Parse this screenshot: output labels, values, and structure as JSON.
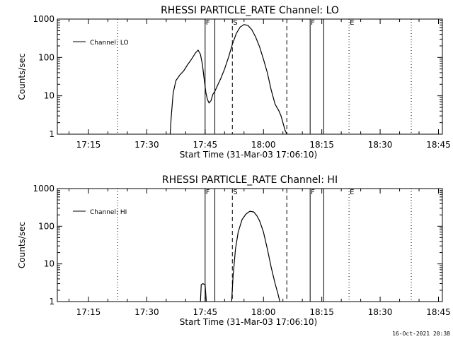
{
  "footer_date": "16-Oct-2021 20:38",
  "colors": {
    "background": "#ffffff",
    "foreground": "#000000"
  },
  "chart_data": [
    {
      "type": "line",
      "title": "RHESSI PARTICLE_RATE Channel: LO",
      "xlabel": "Start Time (31-Mar-03 17:06:10)",
      "ylabel": "Counts/sec",
      "yscale": "log",
      "ylim": [
        1,
        1000
      ],
      "y_ticks": [
        1,
        10,
        100,
        1000
      ],
      "y_tick_labels": [
        "1",
        "10",
        "100",
        "1000"
      ],
      "xlim_minutes": [
        7.0,
        106.0
      ],
      "x_ticks_minutes": [
        15,
        30,
        45,
        60,
        75,
        90,
        105
      ],
      "x_tick_labels": [
        "17:15",
        "17:30",
        "17:45",
        "18:00",
        "18:15",
        "18:30",
        "18:45"
      ],
      "legend": {
        "label": "Channel: LO",
        "position": "top-left"
      },
      "markers": [
        {
          "minute": 22.5,
          "style": "dotted",
          "label": ""
        },
        {
          "minute": 45.0,
          "style": "solid",
          "label": "F"
        },
        {
          "minute": 47.5,
          "style": "solid",
          "label": ""
        },
        {
          "minute": 52.0,
          "style": "dashed",
          "label": "S"
        },
        {
          "minute": 66.0,
          "style": "dashed",
          "label": ""
        },
        {
          "minute": 72.0,
          "style": "solid",
          "label": "F"
        },
        {
          "minute": 75.5,
          "style": "solid",
          "label": ""
        },
        {
          "minute": 82.0,
          "style": "dotted",
          "label": "E"
        },
        {
          "minute": 98.0,
          "style": "dotted",
          "label": ""
        }
      ],
      "series": [
        {
          "name": "Channel: LO",
          "x": [
            36.0,
            36.3,
            36.8,
            37.5,
            38.5,
            39.5,
            40.5,
            41.5,
            42.5,
            43.2,
            43.8,
            44.3,
            44.8,
            45.2,
            45.6,
            46.0,
            46.5,
            47.0,
            47.5,
            48.0,
            49.0,
            50.0,
            51.0,
            52.0,
            53.0,
            54.0,
            55.0,
            56.0,
            57.0,
            58.0,
            59.0,
            60.0,
            61.0,
            62.0,
            63.0,
            64.0,
            64.5,
            65.0,
            65.5,
            66.0
          ],
          "y": [
            1,
            3,
            12,
            25,
            35,
            45,
            65,
            90,
            130,
            155,
            120,
            65,
            25,
            12,
            8,
            6.5,
            7.5,
            11,
            13,
            17,
            28,
            50,
            100,
            220,
            420,
            620,
            720,
            680,
            530,
            340,
            190,
            90,
            40,
            14,
            6,
            4,
            3,
            2,
            1.3,
            1
          ]
        }
      ]
    },
    {
      "type": "line",
      "title": "RHESSI PARTICLE_RATE Channel: HI",
      "xlabel": "Start Time (31-Mar-03 17:06:10)",
      "ylabel": "Counts/sec",
      "yscale": "log",
      "ylim": [
        1,
        1000
      ],
      "y_ticks": [
        1,
        10,
        100,
        1000
      ],
      "y_tick_labels": [
        "1",
        "10",
        "100",
        "1000"
      ],
      "xlim_minutes": [
        7.0,
        106.0
      ],
      "x_ticks_minutes": [
        15,
        30,
        45,
        60,
        75,
        90,
        105
      ],
      "x_tick_labels": [
        "17:15",
        "17:30",
        "17:45",
        "18:00",
        "18:15",
        "18:30",
        "18:45"
      ],
      "legend": {
        "label": "Channel: HI",
        "position": "top-left"
      },
      "markers": [
        {
          "minute": 22.5,
          "style": "dotted",
          "label": ""
        },
        {
          "minute": 45.0,
          "style": "solid",
          "label": "F"
        },
        {
          "minute": 47.5,
          "style": "solid",
          "label": ""
        },
        {
          "minute": 52.0,
          "style": "dashed",
          "label": "S"
        },
        {
          "minute": 66.0,
          "style": "dashed",
          "label": ""
        },
        {
          "minute": 72.0,
          "style": "solid",
          "label": "F"
        },
        {
          "minute": 75.5,
          "style": "solid",
          "label": ""
        },
        {
          "minute": 82.0,
          "style": "dotted",
          "label": "E"
        },
        {
          "minute": 98.0,
          "style": "dotted",
          "label": ""
        }
      ],
      "series": [
        {
          "name": "Channel: HI",
          "segments": [
            {
              "x": [
                43.8,
                44.0,
                44.4,
                45.0,
                45.3
              ],
              "y": [
                1,
                2.8,
                3.0,
                2.8,
                1
              ]
            },
            {
              "x": [
                51.8,
                52.2,
                52.8,
                53.5,
                54.5,
                55.5,
                56.5,
                57.5,
                58.3,
                59.0,
                60.0,
                61.0,
                62.0,
                63.0,
                63.8,
                64.2
              ],
              "y": [
                1,
                5,
                25,
                70,
                150,
                210,
                250,
                240,
                190,
                140,
                70,
                25,
                8,
                3,
                1.5,
                1
              ]
            }
          ]
        }
      ]
    }
  ]
}
